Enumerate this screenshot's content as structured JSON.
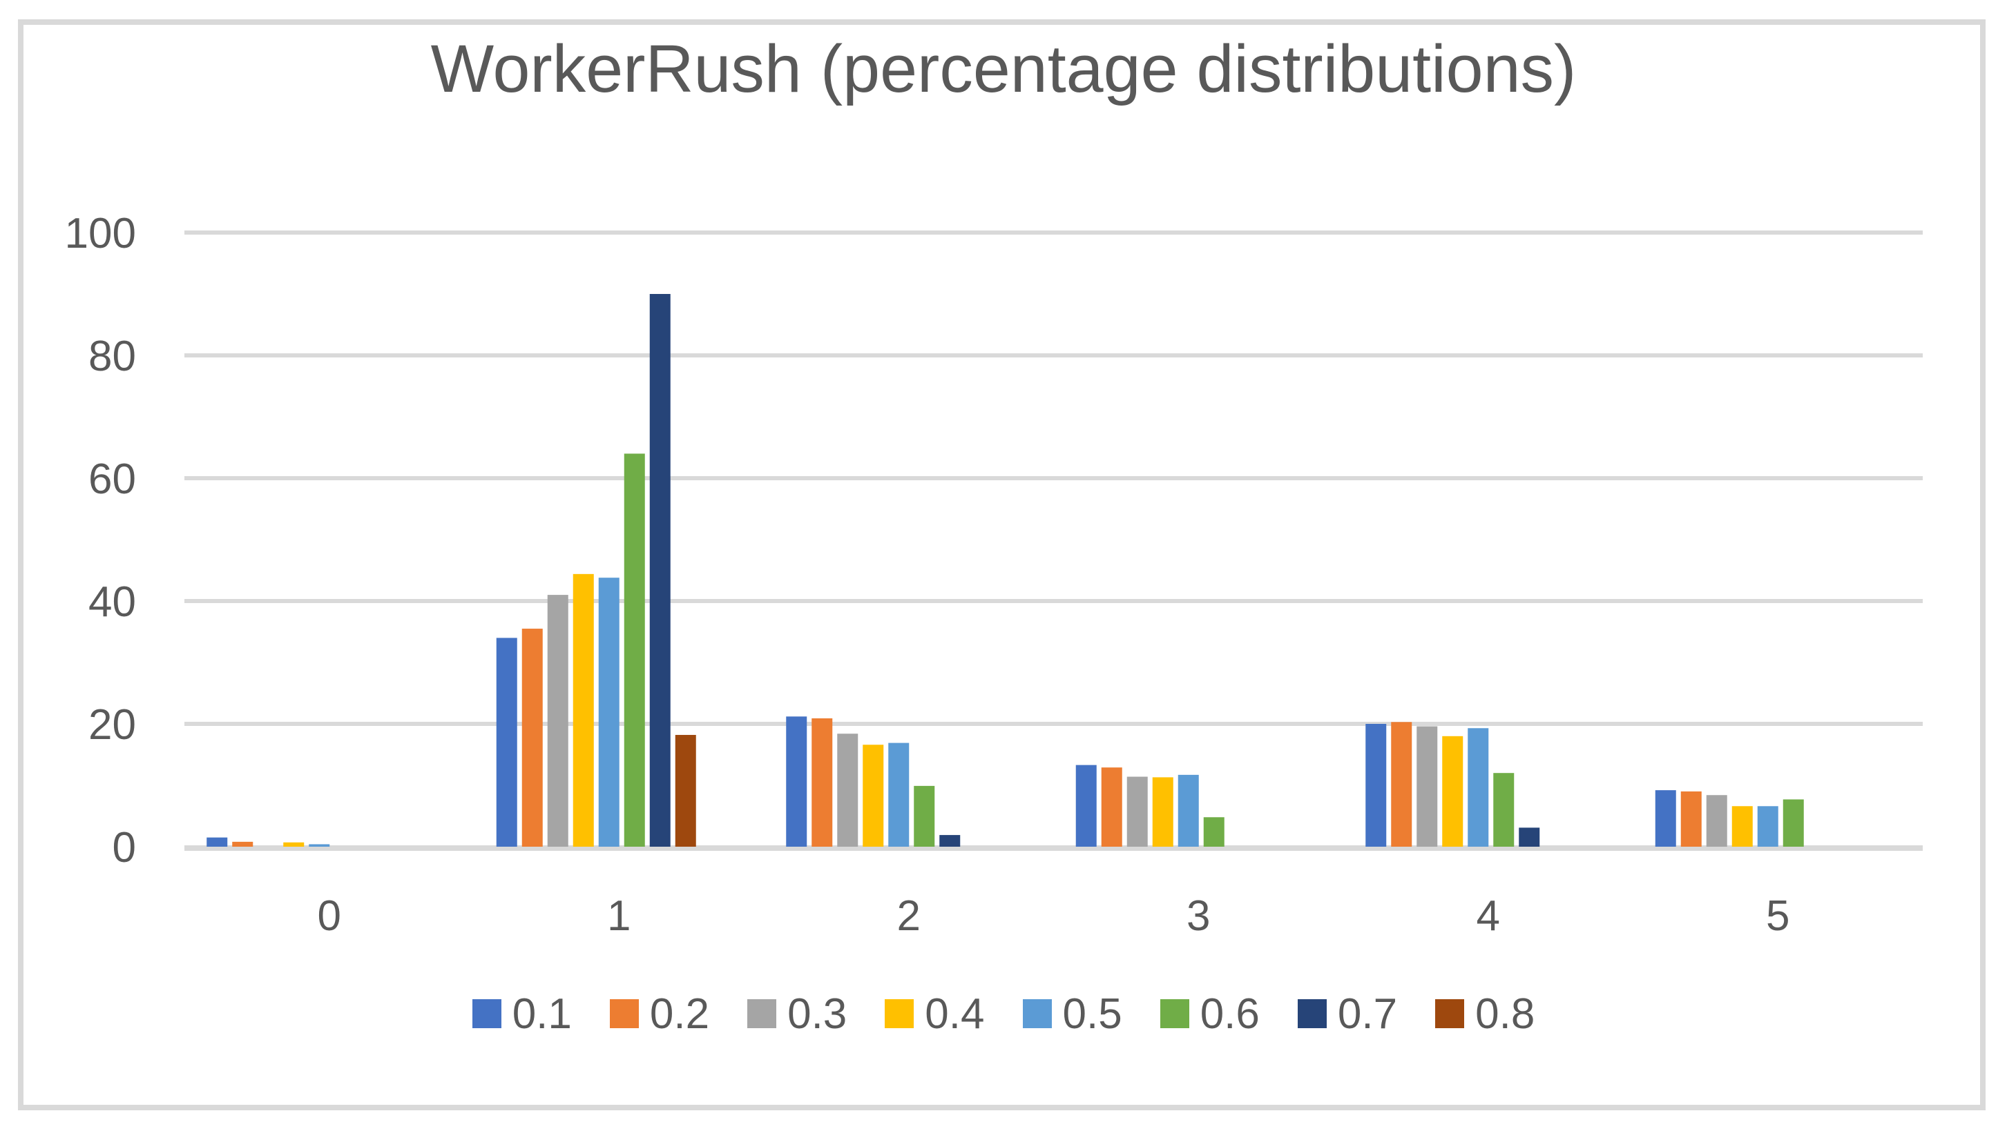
{
  "chart_data": {
    "type": "bar",
    "title": "WorkerRush (percentage distributions)",
    "xlabel": "",
    "ylabel": "",
    "categories": [
      "0",
      "1",
      "2",
      "3",
      "4",
      "5"
    ],
    "series": [
      {
        "name": "0.1",
        "color": "#4472C4",
        "values": [
          1.5,
          34,
          21.2,
          13.3,
          20,
          9.2
        ]
      },
      {
        "name": "0.2",
        "color": "#ED7D31",
        "values": [
          0.8,
          35.5,
          20.9,
          12.9,
          20.3,
          9
        ]
      },
      {
        "name": "0.3",
        "color": "#A5A5A5",
        "values": [
          0,
          41,
          18.4,
          11.4,
          19.6,
          8.4
        ]
      },
      {
        "name": "0.4",
        "color": "#FFC000",
        "values": [
          0.7,
          44.4,
          16.6,
          11.3,
          18,
          6.6
        ]
      },
      {
        "name": "0.5",
        "color": "#5B9BD5",
        "values": [
          0.4,
          43.8,
          16.9,
          11.7,
          19.3,
          6.6
        ]
      },
      {
        "name": "0.6",
        "color": "#70AD47",
        "values": [
          0,
          64,
          9.9,
          4.8,
          12,
          7.7
        ]
      },
      {
        "name": "0.7",
        "color": "#264478",
        "values": [
          0,
          90,
          1.9,
          0,
          3.1,
          0
        ]
      },
      {
        "name": "0.8",
        "color": "#9E480E",
        "values": [
          0,
          18.2,
          0,
          0,
          0,
          0
        ]
      }
    ],
    "ylim": [
      0,
      100
    ],
    "yticks": [
      0,
      20,
      40,
      60,
      80,
      100
    ],
    "grid": true,
    "legend_position": "bottom",
    "grid_color": "#D9D9D9",
    "axis_line_color": "#D9D9D9",
    "text_color": "#595959"
  }
}
